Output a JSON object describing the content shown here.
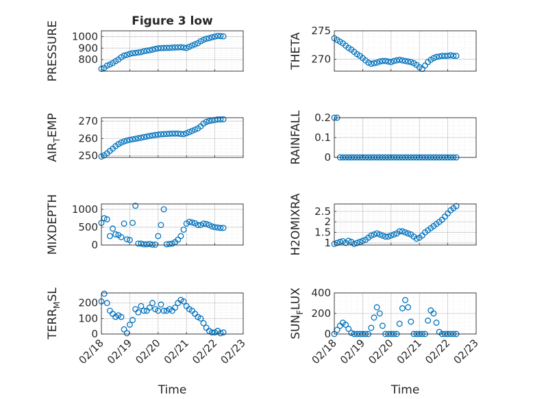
{
  "figure": {
    "title": "Figure 3 low",
    "marker_color": "#0072BD"
  },
  "chart_data": [
    {
      "type": "scatter",
      "title": "Figure 3 low",
      "ylabel": "PRESSURE",
      "xlabel": "",
      "ylim": [
        700,
        1050
      ],
      "yticks": [
        "800",
        "900",
        "1000"
      ],
      "ytick_values": [
        800,
        900,
        1000
      ],
      "xlim": [
        "02/18",
        "02/23"
      ],
      "grid": true,
      "x": [
        0.0,
        0.1,
        0.2,
        0.3,
        0.4,
        0.5,
        0.6,
        0.7,
        0.8,
        0.9,
        1.0,
        1.1,
        1.2,
        1.3,
        1.4,
        1.5,
        1.6,
        1.7,
        1.8,
        1.9,
        2.0,
        2.1,
        2.2,
        2.3,
        2.4,
        2.5,
        2.6,
        2.7,
        2.8,
        2.9,
        3.0,
        3.1,
        3.2,
        3.3,
        3.4,
        3.5,
        3.6,
        3.7,
        3.8,
        3.9,
        4.0,
        4.1,
        4.2,
        4.3
      ],
      "y": [
        720,
        728,
        748,
        758,
        771,
        787,
        801,
        821,
        835,
        842,
        850,
        856,
        858,
        862,
        866,
        873,
        878,
        881,
        887,
        893,
        898,
        900,
        901,
        902,
        903,
        904,
        906,
        906,
        908,
        905,
        901,
        912,
        923,
        933,
        943,
        960,
        972,
        981,
        986,
        994,
        1000,
        1006,
        1004,
        1002
      ]
    },
    {
      "type": "scatter",
      "title": "",
      "ylabel": "THETA",
      "xlabel": "",
      "ylim": [
        267.9,
        275
      ],
      "yticks": [
        "270",
        "275"
      ],
      "ytick_values": [
        270,
        275
      ],
      "xlim": [
        "02/18",
        "02/23"
      ],
      "grid": true,
      "x": [
        0.0,
        0.1,
        0.2,
        0.3,
        0.4,
        0.5,
        0.6,
        0.7,
        0.8,
        0.9,
        1.0,
        1.1,
        1.2,
        1.3,
        1.4,
        1.5,
        1.6,
        1.7,
        1.8,
        1.9,
        2.0,
        2.1,
        2.2,
        2.3,
        2.4,
        2.5,
        2.6,
        2.7,
        2.8,
        2.9,
        3.0,
        3.1,
        3.2,
        3.3,
        3.4,
        3.5,
        3.6,
        3.7,
        3.8,
        3.9,
        4.0,
        4.1,
        4.2,
        4.3
      ],
      "y": [
        273.7,
        273.4,
        273.1,
        272.8,
        272.4,
        272.0,
        271.7,
        271.3,
        270.9,
        270.6,
        270.2,
        269.8,
        269.4,
        269.2,
        269.3,
        269.4,
        269.6,
        269.7,
        269.7,
        269.6,
        269.5,
        269.7,
        269.8,
        269.9,
        269.8,
        269.7,
        269.6,
        269.5,
        269.3,
        269.0,
        268.6,
        268.3,
        268.9,
        269.5,
        269.9,
        270.2,
        270.4,
        270.5,
        270.6,
        270.6,
        270.6,
        270.7,
        270.6,
        270.6
      ]
    },
    {
      "type": "scatter",
      "title": "",
      "ylabel": "AIR",
      "ylabel_sub": "T",
      "ylabel_tail": "EMP",
      "xlabel": "",
      "ylim": [
        249,
        272
      ],
      "yticks": [
        "250",
        "260",
        "270"
      ],
      "ytick_values": [
        250,
        260,
        270
      ],
      "xlim": [
        "02/18",
        "02/23"
      ],
      "grid": true,
      "x": [
        0.0,
        0.1,
        0.2,
        0.3,
        0.4,
        0.5,
        0.6,
        0.7,
        0.8,
        0.9,
        1.0,
        1.1,
        1.2,
        1.3,
        1.4,
        1.5,
        1.6,
        1.7,
        1.8,
        1.9,
        2.0,
        2.1,
        2.2,
        2.3,
        2.4,
        2.5,
        2.6,
        2.7,
        2.8,
        2.9,
        3.0,
        3.1,
        3.2,
        3.3,
        3.4,
        3.5,
        3.6,
        3.7,
        3.8,
        3.9,
        4.0,
        4.1,
        4.2,
        4.3
      ],
      "y": [
        249.5,
        250.2,
        251.4,
        252.8,
        254.1,
        255.5,
        256.7,
        257.6,
        258.3,
        258.8,
        259.2,
        259.5,
        259.8,
        260.1,
        260.4,
        260.8,
        261.1,
        261.4,
        261.7,
        262.0,
        262.2,
        262.4,
        262.5,
        262.6,
        262.7,
        262.8,
        262.8,
        262.8,
        262.6,
        262.5,
        263.0,
        263.7,
        264.4,
        265.1,
        265.8,
        267.0,
        268.6,
        269.6,
        270.1,
        270.4,
        270.7,
        271.0,
        271.0,
        271.1
      ]
    },
    {
      "type": "scatter",
      "title": "",
      "ylabel": "RAINFALL",
      "xlabel": "",
      "ylim": [
        0,
        0.2
      ],
      "yticks": [
        "0",
        "0.1",
        "0.2"
      ],
      "ytick_values": [
        0,
        0.1,
        0.2
      ],
      "xlim": [
        "02/18",
        "02/23"
      ],
      "grid": true,
      "x": [
        0.0,
        0.1,
        0.2,
        0.3,
        0.4,
        0.5,
        0.6,
        0.7,
        0.8,
        0.9,
        1.0,
        1.1,
        1.2,
        1.3,
        1.4,
        1.5,
        1.6,
        1.7,
        1.8,
        1.9,
        2.0,
        2.1,
        2.2,
        2.3,
        2.4,
        2.5,
        2.6,
        2.7,
        2.8,
        2.9,
        3.0,
        3.1,
        3.2,
        3.3,
        3.4,
        3.5,
        3.6,
        3.7,
        3.8,
        3.9,
        4.0,
        4.1,
        4.2,
        4.3
      ],
      "y": [
        0.2,
        0.2,
        0,
        0,
        0,
        0,
        0,
        0,
        0,
        0,
        0,
        0,
        0,
        0,
        0,
        0,
        0,
        0,
        0,
        0,
        0,
        0,
        0,
        0,
        0,
        0,
        0,
        0,
        0,
        0,
        0,
        0,
        0,
        0,
        0,
        0,
        0,
        0,
        0,
        0,
        0,
        0,
        0,
        0
      ]
    },
    {
      "type": "scatter",
      "title": "",
      "ylabel": "MIXDEPTH",
      "xlabel": "",
      "ylim": [
        0,
        1150
      ],
      "yticks": [
        "0",
        "500",
        "1000"
      ],
      "ytick_values": [
        0,
        500,
        1000
      ],
      "xlim": [
        "02/18",
        "02/23"
      ],
      "grid": true,
      "x": [
        0.0,
        0.1,
        0.2,
        0.3,
        0.4,
        0.5,
        0.6,
        0.7,
        0.8,
        0.9,
        1.0,
        1.1,
        1.2,
        1.3,
        1.4,
        1.5,
        1.6,
        1.7,
        1.8,
        1.9,
        2.0,
        2.1,
        2.2,
        2.3,
        2.4,
        2.5,
        2.6,
        2.7,
        2.8,
        2.9,
        3.0,
        3.1,
        3.2,
        3.3,
        3.4,
        3.5,
        3.6,
        3.7,
        3.8,
        3.9,
        4.0,
        4.1,
        4.2,
        4.3
      ],
      "y": [
        620,
        750,
        720,
        250,
        460,
        300,
        280,
        220,
        600,
        160,
        140,
        620,
        1100,
        40,
        40,
        20,
        20,
        30,
        10,
        10,
        250,
        560,
        1000,
        20,
        30,
        40,
        80,
        150,
        250,
        430,
        600,
        650,
        630,
        610,
        560,
        560,
        600,
        590,
        560,
        520,
        500,
        490,
        480,
        480
      ]
    },
    {
      "type": "scatter",
      "title": "",
      "ylabel": "H2OMIXRA",
      "xlabel": "",
      "ylim": [
        0.9,
        2.85
      ],
      "yticks": [
        "1",
        "1.5",
        "2",
        "2.5"
      ],
      "ytick_values": [
        1,
        1.5,
        2,
        2.5
      ],
      "xlim": [
        "02/18",
        "02/23"
      ],
      "grid": true,
      "x": [
        0.0,
        0.1,
        0.2,
        0.3,
        0.4,
        0.5,
        0.6,
        0.7,
        0.8,
        0.9,
        1.0,
        1.1,
        1.2,
        1.3,
        1.4,
        1.5,
        1.6,
        1.7,
        1.8,
        1.9,
        2.0,
        2.1,
        2.2,
        2.3,
        2.4,
        2.5,
        2.6,
        2.7,
        2.8,
        2.9,
        3.0,
        3.1,
        3.2,
        3.3,
        3.4,
        3.5,
        3.6,
        3.7,
        3.8,
        3.9,
        4.0,
        4.1,
        4.2,
        4.3
      ],
      "y": [
        0.95,
        1.0,
        1.05,
        1.08,
        1.0,
        1.1,
        1.05,
        0.95,
        1.0,
        1.05,
        1.1,
        1.15,
        1.25,
        1.35,
        1.4,
        1.45,
        1.4,
        1.35,
        1.3,
        1.3,
        1.35,
        1.4,
        1.45,
        1.55,
        1.55,
        1.5,
        1.45,
        1.4,
        1.3,
        1.2,
        1.25,
        1.35,
        1.5,
        1.6,
        1.7,
        1.8,
        1.9,
        2.0,
        2.1,
        2.25,
        2.4,
        2.55,
        2.65,
        2.75
      ]
    },
    {
      "type": "scatter",
      "title": "",
      "ylabel": "TERR",
      "ylabel_sub": "M",
      "ylabel_tail": "SL",
      "xlabel": "Time",
      "ylim": [
        0,
        265
      ],
      "yticks": [
        "0",
        "100",
        "200"
      ],
      "ytick_values": [
        0,
        100,
        200
      ],
      "xlim": [
        "02/18",
        "02/23"
      ],
      "xticks": [
        "02/18",
        "02/19",
        "02/20",
        "02/21",
        "02/22",
        "02/23"
      ],
      "grid": true,
      "x": [
        0.0,
        0.1,
        0.2,
        0.3,
        0.4,
        0.5,
        0.6,
        0.7,
        0.8,
        0.9,
        1.0,
        1.1,
        1.2,
        1.3,
        1.4,
        1.5,
        1.6,
        1.7,
        1.8,
        1.9,
        2.0,
        2.1,
        2.2,
        2.3,
        2.4,
        2.5,
        2.6,
        2.7,
        2.8,
        2.9,
        3.0,
        3.1,
        3.2,
        3.3,
        3.4,
        3.5,
        3.6,
        3.7,
        3.8,
        3.9,
        4.0,
        4.1,
        4.2,
        4.3
      ],
      "y": [
        210,
        260,
        200,
        150,
        130,
        110,
        120,
        110,
        30,
        5,
        60,
        90,
        160,
        140,
        180,
        150,
        150,
        170,
        200,
        160,
        150,
        190,
        150,
        150,
        160,
        150,
        170,
        200,
        220,
        210,
        180,
        160,
        150,
        130,
        110,
        100,
        70,
        40,
        20,
        10,
        10,
        20,
        5,
        10
      ]
    },
    {
      "type": "scatter",
      "title": "",
      "ylabel": "SUN",
      "ylabel_sub": "F",
      "ylabel_tail": "LUX",
      "xlabel": "Time",
      "ylim": [
        0,
        400
      ],
      "yticks": [
        "0",
        "200",
        "400"
      ],
      "ytick_values": [
        0,
        200,
        400
      ],
      "xlim": [
        "02/18",
        "02/23"
      ],
      "xticks": [
        "02/18",
        "02/19",
        "02/20",
        "02/21",
        "02/22",
        "02/23"
      ],
      "grid": true,
      "x": [
        0.0,
        0.1,
        0.2,
        0.3,
        0.4,
        0.5,
        0.6,
        0.7,
        0.8,
        0.9,
        1.0,
        1.1,
        1.2,
        1.3,
        1.4,
        1.5,
        1.6,
        1.7,
        1.8,
        1.9,
        2.0,
        2.1,
        2.2,
        2.3,
        2.4,
        2.5,
        2.6,
        2.7,
        2.8,
        2.9,
        3.0,
        3.1,
        3.2,
        3.3,
        3.4,
        3.5,
        3.6,
        3.7,
        3.8,
        3.9,
        4.0,
        4.1,
        4.2,
        4.3
      ],
      "y": [
        0,
        40,
        80,
        110,
        90,
        50,
        10,
        0,
        0,
        0,
        0,
        0,
        0,
        60,
        160,
        260,
        200,
        80,
        0,
        0,
        0,
        0,
        0,
        100,
        250,
        330,
        260,
        120,
        0,
        0,
        0,
        0,
        0,
        130,
        230,
        200,
        110,
        20,
        0,
        0,
        0,
        0,
        0,
        0
      ]
    }
  ]
}
